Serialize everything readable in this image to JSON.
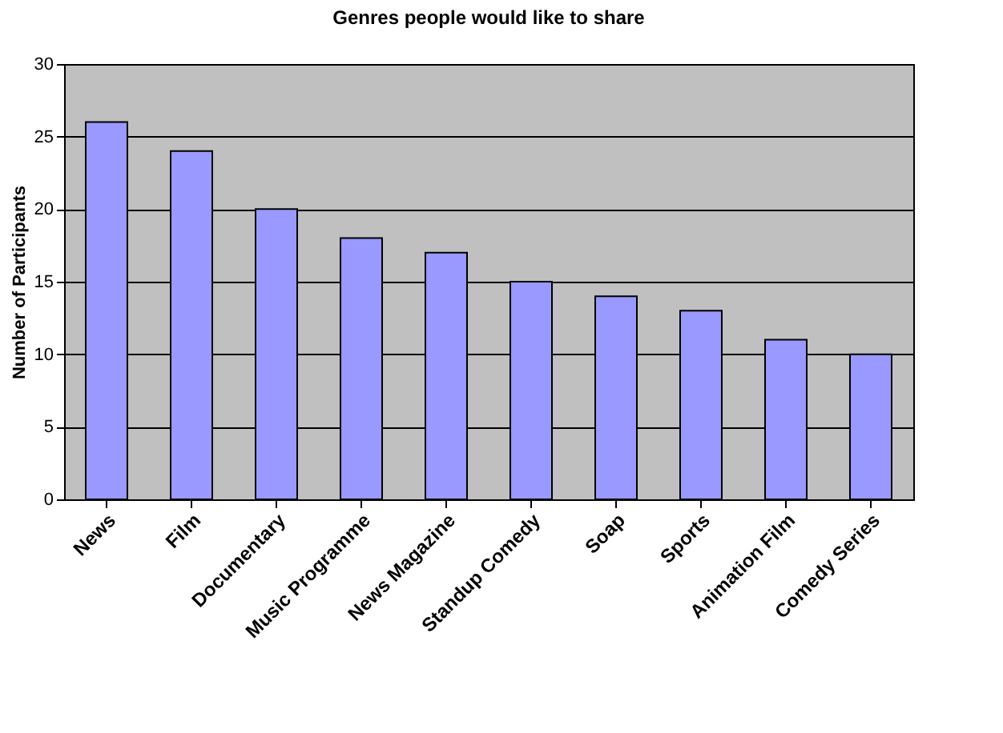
{
  "chart_data": {
    "type": "bar",
    "title": "Genres people would like to share",
    "ylabel": "Number of Participants",
    "categories": [
      "News",
      "Film",
      "Documentary",
      "Music Programme",
      "News Magazine",
      "Standup Comedy",
      "Soap",
      "Sports",
      "Animation Film",
      "Comedy Series"
    ],
    "values": [
      26,
      24,
      20,
      18,
      17,
      15,
      14,
      13,
      11,
      10
    ],
    "color": "#9999ff",
    "ylim": [
      0,
      30
    ],
    "yticks": [
      0,
      5,
      10,
      15,
      20,
      25,
      30
    ],
    "grid": "y"
  }
}
